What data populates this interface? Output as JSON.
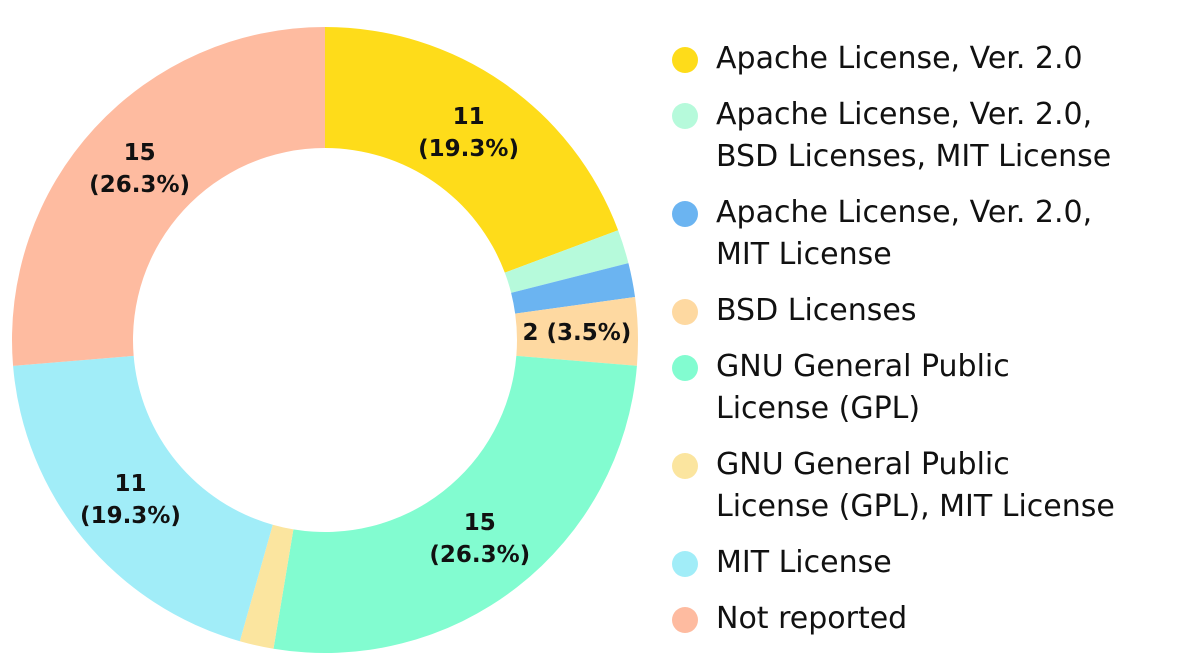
{
  "chart_data": {
    "type": "donut",
    "categories": [
      "Apache License, Ver. 2.0",
      "Apache License, Ver. 2.0,\nBSD Licenses, MIT License",
      "Apache License, Ver. 2.0,\nMIT License",
      "BSD Licenses",
      "GNU General Public\nLicense (GPL)",
      "GNU General Public\nLicense (GPL), MIT License",
      "MIT License",
      "Not reported"
    ],
    "values": [
      11,
      1,
      1,
      2,
      15,
      1,
      11,
      15
    ],
    "value_labels": [
      "11\n(19.3%)",
      null,
      null,
      "2 (3.5%)",
      "15\n(26.3%)",
      null,
      "11\n(19.3%)",
      "15\n(26.3%)"
    ],
    "colors": [
      "#fedc1a",
      "#b6fadb",
      "#6bb4f1",
      "#fed9a1",
      "#82fcd0",
      "#fbe59f",
      "#a1edf8",
      "#febba0"
    ],
    "legend": "right"
  }
}
